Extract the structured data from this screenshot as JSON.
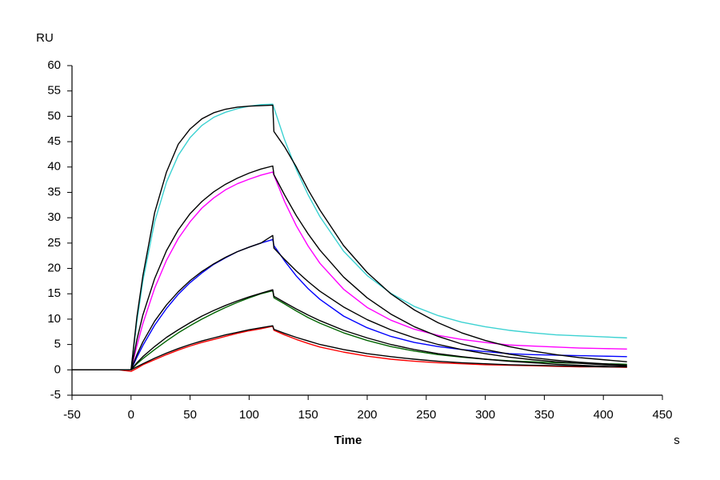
{
  "chart_data": {
    "type": "line",
    "y_label": "RU",
    "x_label": "Time",
    "x_unit": "s",
    "xlim": [
      -50,
      450
    ],
    "ylim": [
      -5,
      60
    ],
    "xticks": [
      -50,
      0,
      50,
      100,
      150,
      200,
      250,
      300,
      350,
      400,
      450
    ],
    "yticks": [
      -5,
      0,
      5,
      10,
      15,
      20,
      25,
      30,
      35,
      40,
      45,
      50,
      55,
      60
    ],
    "grid": false,
    "x": [
      -50,
      -10,
      0,
      5,
      10,
      20,
      30,
      40,
      50,
      60,
      70,
      80,
      90,
      100,
      110,
      120,
      121,
      130,
      140,
      150,
      160,
      180,
      200,
      220,
      240,
      260,
      280,
      300,
      320,
      340,
      360,
      380,
      400,
      420
    ],
    "series": [
      {
        "color": "#3cd2d2",
        "values": [
          0,
          0,
          0,
          9.6,
          17.5,
          29.2,
          37.0,
          42.3,
          45.8,
          48.2,
          49.8,
          50.8,
          51.5,
          52.0,
          52.3,
          52.4,
          51.7,
          45.4,
          39.5,
          34.5,
          30.2,
          23.4,
          18.6,
          15.1,
          12.5,
          10.7,
          9.4,
          8.5,
          7.8,
          7.3,
          6.9,
          6.7,
          6.5,
          6.3
        ]
      },
      {
        "color": "#ff00ff",
        "values": [
          0,
          0,
          0,
          4.8,
          9.1,
          16.1,
          21.6,
          25.9,
          29.2,
          31.9,
          33.9,
          35.5,
          36.7,
          37.6,
          38.4,
          39.0,
          38.4,
          33.2,
          28.4,
          24.4,
          21.0,
          15.9,
          12.3,
          9.8,
          8.0,
          6.8,
          6.0,
          5.4,
          4.9,
          4.7,
          4.5,
          4.3,
          4.2,
          4.1
        ]
      },
      {
        "color": "#0000ff",
        "values": [
          0,
          0,
          0,
          2.5,
          4.8,
          8.8,
          12.1,
          14.9,
          17.2,
          19.1,
          20.8,
          22.1,
          23.3,
          24.2,
          25.0,
          25.7,
          24.5,
          21.5,
          18.5,
          16.0,
          13.9,
          10.6,
          8.3,
          6.6,
          5.4,
          4.6,
          4.0,
          3.6,
          3.2,
          3.0,
          2.9,
          2.8,
          2.7,
          2.6
        ]
      },
      {
        "color": "#006400",
        "values": [
          0,
          0,
          0,
          1.2,
          2.2,
          4.0,
          5.7,
          7.3,
          8.7,
          10.0,
          11.2,
          12.3,
          13.3,
          14.2,
          15.0,
          15.6,
          14.2,
          13.0,
          11.6,
          10.3,
          9.2,
          7.3,
          5.8,
          4.6,
          3.7,
          3.0,
          2.5,
          2.1,
          1.8,
          1.6,
          1.4,
          1.3,
          1.2,
          1.1
        ]
      },
      {
        "color": "#ff0000",
        "values": [
          0,
          0,
          -0.3,
          0.3,
          1.0,
          2.0,
          3.0,
          3.9,
          4.7,
          5.4,
          6.0,
          6.6,
          7.2,
          7.7,
          8.1,
          8.6,
          7.8,
          6.9,
          6.0,
          5.2,
          4.5,
          3.5,
          2.7,
          2.1,
          1.7,
          1.4,
          1.2,
          1.0,
          0.9,
          0.8,
          0.7,
          0.6,
          0.6,
          0.5
        ]
      },
      {
        "color": "#000000",
        "values": [
          0,
          0,
          0,
          10.5,
          18.5,
          31,
          39,
          44.5,
          47.5,
          49.5,
          50.7,
          51.4,
          51.8,
          52.0,
          52.1,
          52.2,
          47,
          44,
          40,
          35.5,
          31.5,
          24.5,
          19.2,
          15,
          11.8,
          9.3,
          7.3,
          5.8,
          4.6,
          3.7,
          3.0,
          2.4,
          2.0,
          1.6
        ]
      },
      {
        "color": "#000000",
        "values": [
          0,
          0,
          0,
          6,
          10.8,
          18,
          23.5,
          27.6,
          30.8,
          33.2,
          35.1,
          36.6,
          37.8,
          38.8,
          39.6,
          40.2,
          38.5,
          34.5,
          30.4,
          26.8,
          23.6,
          18.3,
          14.2,
          11.0,
          8.5,
          6.6,
          5.1,
          4.0,
          3.1,
          2.4,
          1.9,
          1.5,
          1.2,
          0.9
        ]
      },
      {
        "color": "#000000",
        "values": [
          0,
          0,
          0,
          3,
          5.5,
          9.6,
          12.8,
          15.4,
          17.6,
          19.4,
          20.9,
          22.2,
          23.3,
          24.2,
          25.0,
          26.5,
          24,
          21.8,
          19.5,
          17.4,
          15.5,
          12.4,
          9.9,
          7.9,
          6.3,
          5.0,
          4.0,
          3.2,
          2.5,
          2.0,
          1.6,
          1.3,
          1.0,
          0.8
        ]
      },
      {
        "color": "#000000",
        "values": [
          0,
          0,
          0,
          1.4,
          2.6,
          4.6,
          6.4,
          7.9,
          9.3,
          10.6,
          11.7,
          12.7,
          13.6,
          14.4,
          15.1,
          15.8,
          14.5,
          13.3,
          12.0,
          10.8,
          9.7,
          7.8,
          6.3,
          5.0,
          4.0,
          3.2,
          2.6,
          2.1,
          1.7,
          1.4,
          1.1,
          0.9,
          0.7,
          0.6
        ]
      },
      {
        "color": "#000000",
        "values": [
          0,
          0,
          0,
          0.6,
          1.2,
          2.3,
          3.3,
          4.2,
          5.0,
          5.7,
          6.3,
          6.9,
          7.4,
          7.9,
          8.3,
          8.7,
          8.0,
          7.2,
          6.4,
          5.7,
          5.0,
          4.0,
          3.2,
          2.6,
          2.1,
          1.7,
          1.4,
          1.2,
          1.0,
          0.9,
          0.8,
          0.7,
          0.6,
          0.6
        ]
      }
    ]
  }
}
